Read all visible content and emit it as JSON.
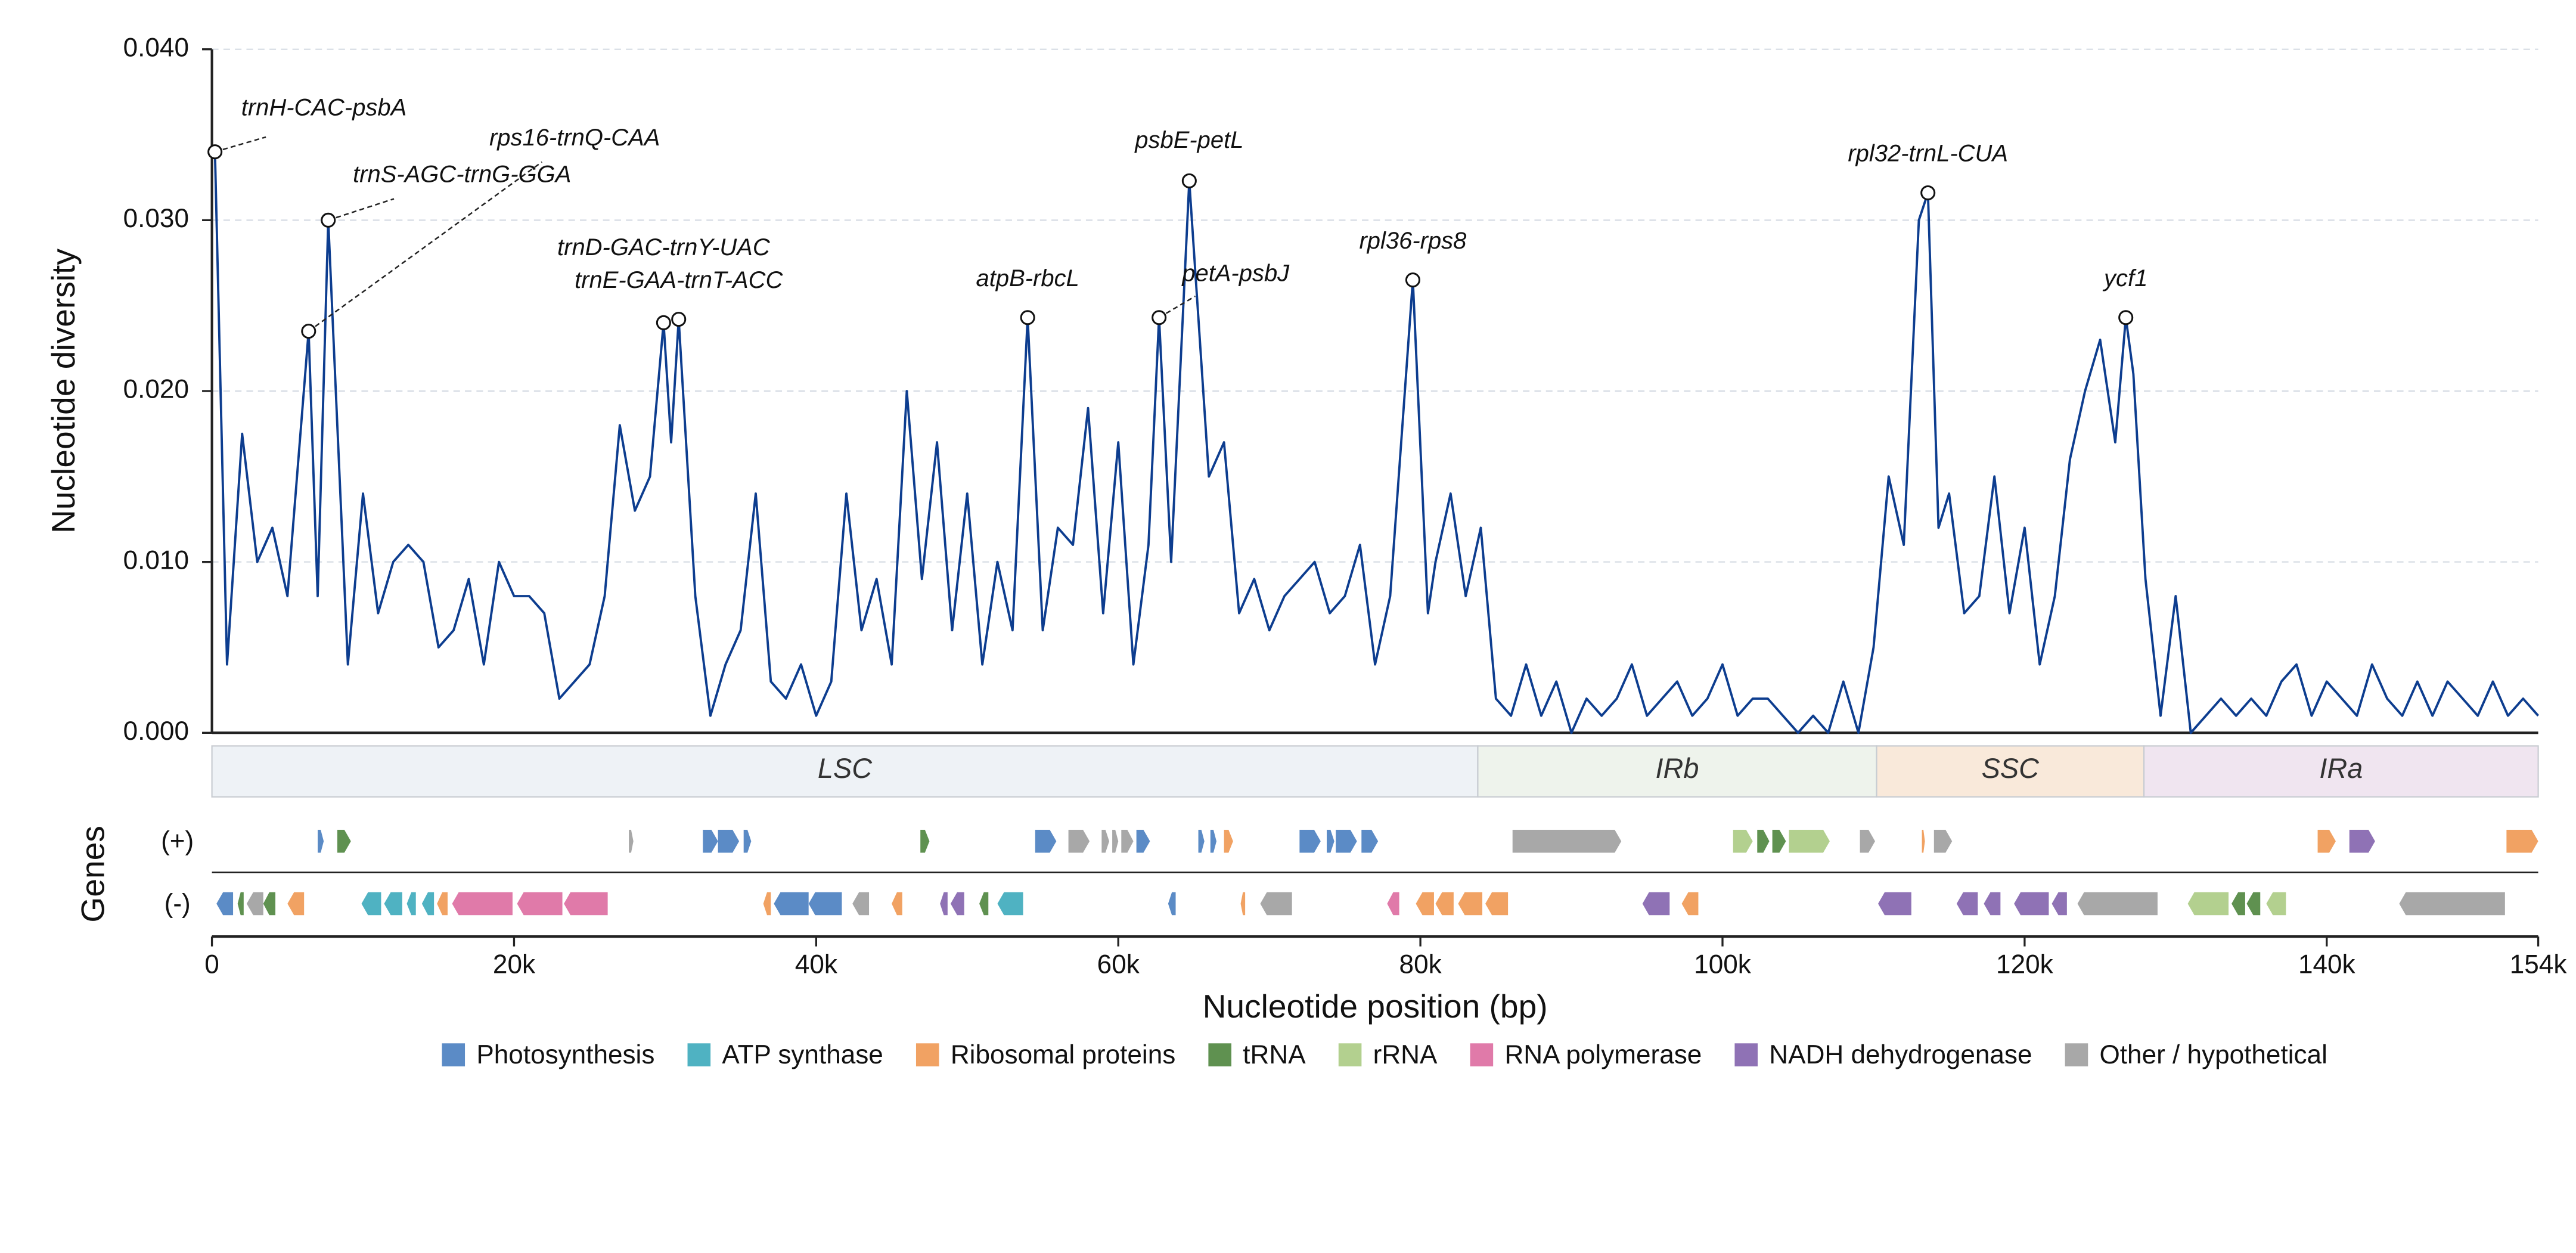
{
  "chart_data": {
    "type": "line",
    "ylabel": "Nucleotide diversity",
    "xlabel": "Nucleotide position (bp)",
    "genes_label": "Genes",
    "strand_labels": [
      "(+)",
      "(-)"
    ],
    "ylim": [
      0,
      0.04
    ],
    "yticks": [
      {
        "value": 0,
        "label": "0.000"
      },
      {
        "value": 0.01,
        "label": "0.010"
      },
      {
        "value": 0.02,
        "label": "0.020"
      },
      {
        "value": 0.03,
        "label": "0.030"
      },
      {
        "value": 0.04,
        "label": "0.040"
      }
    ],
    "xlim": [
      0,
      154000
    ],
    "xticks": [
      0,
      {
        "value": 20000,
        "label": "20k"
      },
      {
        "value": 40000,
        "label": "40k"
      },
      {
        "value": 60000,
        "label": "60k"
      },
      {
        "value": 80000,
        "label": "80k"
      },
      {
        "value": 100000,
        "label": "100k"
      },
      {
        "value": 120000,
        "label": "120k"
      },
      {
        "value": 140000,
        "label": "140k"
      },
      {
        "value": 154000,
        "label": "154k"
      }
    ],
    "grid": true,
    "color": "#0d3d8f",
    "x": [
      200,
      1000,
      2000,
      3000,
      4000,
      5000,
      6400,
      7000,
      7700,
      9000,
      10000,
      11000,
      12000,
      13000,
      14000,
      15000,
      16000,
      17000,
      18000,
      19000,
      20000,
      21000,
      22000,
      23000,
      24000,
      25000,
      26000,
      27000,
      28000,
      29000,
      29900,
      30400,
      30900,
      32000,
      33000,
      34000,
      35000,
      36000,
      37000,
      38000,
      39000,
      40000,
      41000,
      42000,
      43000,
      44000,
      45000,
      46000,
      47000,
      48000,
      49000,
      50000,
      51000,
      52000,
      53000,
      54000,
      55000,
      56000,
      57000,
      58000,
      59000,
      60000,
      61000,
      62000,
      62700,
      63500,
      64700,
      66000,
      67000,
      68000,
      69000,
      70000,
      71000,
      72000,
      73000,
      74000,
      75000,
      76000,
      77000,
      78000,
      79500,
      80500,
      81000,
      82000,
      83000,
      84000,
      85000,
      86000,
      87000,
      88000,
      89000,
      90000,
      91000,
      92000,
      93000,
      94000,
      95000,
      96000,
      97000,
      98000,
      99000,
      100000,
      101000,
      102000,
      103000,
      104000,
      105000,
      106000,
      107000,
      108000,
      109000,
      110000,
      111000,
      112000,
      113000,
      113600,
      114300,
      115000,
      116000,
      117000,
      118000,
      119000,
      120000,
      121000,
      122000,
      123000,
      124000,
      125000,
      126000,
      126700,
      127200,
      128000,
      129000,
      130000,
      131000,
      132000,
      133000,
      134000,
      135000,
      136000,
      137000,
      138000,
      139000,
      140000,
      141000,
      142000,
      143000,
      144000,
      145000,
      146000,
      147000,
      148000,
      149000,
      150000,
      151000,
      152000,
      153000,
      154000
    ],
    "values": [
      0.034,
      0.004,
      0.0175,
      0.01,
      0.012,
      0.008,
      0.0235,
      0.008,
      0.03,
      0.004,
      0.014,
      0.007,
      0.01,
      0.011,
      0.01,
      0.005,
      0.006,
      0.009,
      0.004,
      0.01,
      0.008,
      0.008,
      0.007,
      0.002,
      0.003,
      0.004,
      0.008,
      0.018,
      0.013,
      0.015,
      0.024,
      0.017,
      0.0242,
      0.008,
      0.001,
      0.004,
      0.006,
      0.014,
      0.003,
      0.002,
      0.004,
      0.001,
      0.003,
      0.014,
      0.006,
      0.009,
      0.004,
      0.02,
      0.009,
      0.017,
      0.006,
      0.014,
      0.004,
      0.01,
      0.006,
      0.0243,
      0.006,
      0.012,
      0.011,
      0.019,
      0.007,
      0.017,
      0.004,
      0.011,
      0.0243,
      0.01,
      0.0323,
      0.015,
      0.017,
      0.007,
      0.009,
      0.006,
      0.008,
      0.009,
      0.01,
      0.007,
      0.008,
      0.011,
      0.004,
      0.008,
      0.0265,
      0.007,
      0.01,
      0.014,
      0.008,
      0.012,
      0.002,
      0.001,
      0.004,
      0.001,
      0.003,
      0,
      0.002,
      0.001,
      0.002,
      0.004,
      0.001,
      0.002,
      0.003,
      0.001,
      0.002,
      0.004,
      0.001,
      0.002,
      0.002,
      0.001,
      0,
      0.001,
      0,
      0.003,
      0,
      0.005,
      0.015,
      0.011,
      0.03,
      0.0316,
      0.012,
      0.014,
      0.007,
      0.008,
      0.015,
      0.007,
      0.012,
      0.004,
      0.008,
      0.016,
      0.02,
      0.023,
      0.017,
      0.0243,
      0.021,
      0.009,
      0.001,
      0.008,
      0,
      0.001,
      0.002,
      0.001,
      0.002,
      0.001,
      0.003,
      0.004,
      0.001,
      0.003,
      0.002,
      0.001,
      0.004,
      0.002,
      0.001,
      0.003,
      0.001,
      0.003,
      0.002,
      0.001,
      0.003,
      0.001,
      0.002,
      0.001
    ],
    "annotations": [
      {
        "label": "trnH-CAC-psbA",
        "x": 200,
        "y": 0.034
      },
      {
        "label": "rps16-trnQ-CAA",
        "x": 6400,
        "y": 0.0235
      },
      {
        "label": "trnS-AGC-trnG-GGA",
        "x": 7700,
        "y": 0.03
      },
      {
        "label": "trnD-GAC-trnY-UAC",
        "x": 29900,
        "y": 0.024
      },
      {
        "label": "trnE-GAA-trnT-ACC",
        "x": 30900,
        "y": 0.0242
      },
      {
        "label": "atpB-rbcL",
        "x": 54000,
        "y": 0.0243
      },
      {
        "label": "petA-psbJ",
        "x": 62700,
        "y": 0.0243
      },
      {
        "label": "psbE-petL",
        "x": 64700,
        "y": 0.0323
      },
      {
        "label": "rpl36-rps8",
        "x": 79500,
        "y": 0.0265
      },
      {
        "label": "rpl32-trnL-CUA",
        "x": 113600,
        "y": 0.0316
      },
      {
        "label": "ycf1",
        "x": 126700,
        "y": 0.0243
      }
    ],
    "regions": [
      {
        "name": "LSC",
        "start": 0,
        "end": 83800,
        "color": "#eef2f6"
      },
      {
        "name": "IRb",
        "start": 83800,
        "end": 110200,
        "color": "#eef3ec"
      },
      {
        "name": "SSC",
        "start": 110200,
        "end": 127900,
        "color": "#f9e9da"
      },
      {
        "name": "IRa",
        "start": 127900,
        "end": 154000,
        "color": "#f0e5f0"
      }
    ],
    "legend": [
      {
        "name": "Photosynthesis",
        "color": "#5b8bc6"
      },
      {
        "name": "ATP synthase",
        "color": "#4fb2c2"
      },
      {
        "name": "Ribosomal proteins",
        "color": "#f1a263"
      },
      {
        "name": "tRNA",
        "color": "#5f9150"
      },
      {
        "name": "rRNA",
        "color": "#b3d08f"
      },
      {
        "name": "RNA polymerase",
        "color": "#e07aa9"
      },
      {
        "name": "NADH dehydrogenase",
        "color": "#8f72b5"
      },
      {
        "name": "Other / hypothetical",
        "color": "#a8a8a8"
      }
    ],
    "genes": {
      "plus": [
        [
          7000,
          7400,
          0
        ],
        [
          8300,
          9200,
          3
        ],
        [
          27600,
          27900,
          7
        ],
        [
          32500,
          33500,
          0
        ],
        [
          33500,
          34900,
          0
        ],
        [
          35200,
          35700,
          0
        ],
        [
          46900,
          47500,
          3
        ],
        [
          54500,
          55900,
          0
        ],
        [
          56700,
          58100,
          7
        ],
        [
          58900,
          59400,
          7
        ],
        [
          59600,
          60000,
          7
        ],
        [
          60200,
          61000,
          7
        ],
        [
          61200,
          62100,
          0
        ],
        [
          65300,
          65700,
          0
        ],
        [
          66100,
          66500,
          0
        ],
        [
          67000,
          67600,
          2
        ],
        [
          72000,
          73400,
          0
        ],
        [
          73800,
          74300,
          0
        ],
        [
          74400,
          75800,
          0
        ],
        [
          76100,
          77200,
          0
        ],
        [
          86100,
          93300,
          7
        ],
        [
          100700,
          102000,
          4
        ],
        [
          102300,
          103100,
          3
        ],
        [
          103300,
          104200,
          3
        ],
        [
          104400,
          107100,
          4
        ],
        [
          109100,
          110100,
          7
        ],
        [
          113200,
          113400,
          2
        ],
        [
          114000,
          115200,
          7
        ],
        [
          139400,
          140600,
          2
        ],
        [
          141500,
          143200,
          6
        ],
        [
          151900,
          154000,
          2
        ]
      ],
      "minus": [
        [
          300,
          1400,
          0
        ],
        [
          1700,
          2100,
          3
        ],
        [
          2300,
          3400,
          7
        ],
        [
          3400,
          4200,
          3
        ],
        [
          5000,
          6100,
          2
        ],
        [
          9900,
          11200,
          1
        ],
        [
          11400,
          12600,
          1
        ],
        [
          12900,
          13500,
          1
        ],
        [
          13900,
          14700,
          1
        ],
        [
          14900,
          15600,
          2
        ],
        [
          15900,
          19900,
          5
        ],
        [
          20200,
          23200,
          5
        ],
        [
          23300,
          26200,
          5
        ],
        [
          36500,
          37000,
          2
        ],
        [
          37200,
          39500,
          0
        ],
        [
          39500,
          41700,
          0
        ],
        [
          42400,
          43500,
          7
        ],
        [
          45000,
          45700,
          2
        ],
        [
          48200,
          48700,
          6
        ],
        [
          48900,
          49800,
          6
        ],
        [
          50800,
          51400,
          3
        ],
        [
          52000,
          53700,
          1
        ],
        [
          63300,
          63800,
          0
        ],
        [
          68100,
          68400,
          2
        ],
        [
          69400,
          71500,
          7
        ],
        [
          77800,
          78600,
          5
        ],
        [
          79700,
          80900,
          2
        ],
        [
          81000,
          82200,
          2
        ],
        [
          82500,
          84100,
          2
        ],
        [
          84300,
          85800,
          2
        ],
        [
          94700,
          96500,
          6
        ],
        [
          97300,
          98400,
          2
        ],
        [
          110300,
          112500,
          6
        ],
        [
          115500,
          116900,
          6
        ],
        [
          117300,
          118400,
          6
        ],
        [
          119300,
          121600,
          6
        ],
        [
          121800,
          122800,
          6
        ],
        [
          123500,
          128800,
          7
        ],
        [
          130800,
          133500,
          4
        ],
        [
          133700,
          134600,
          3
        ],
        [
          134700,
          135600,
          3
        ],
        [
          136000,
          137300,
          4
        ],
        [
          144800,
          151800,
          7
        ]
      ]
    }
  }
}
